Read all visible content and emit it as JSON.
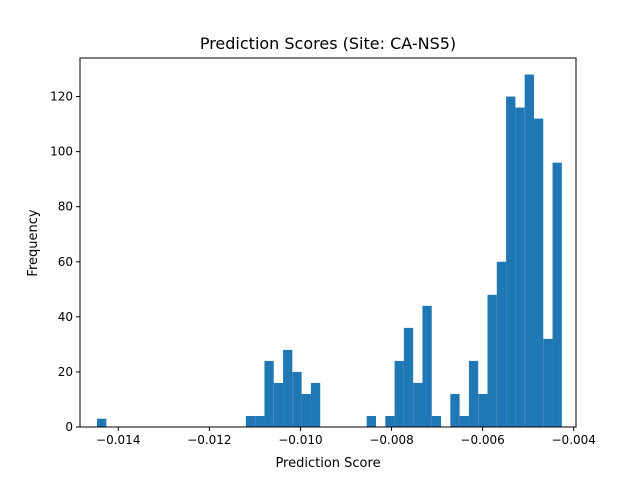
{
  "chart_data": {
    "type": "bar",
    "title": "Prediction Scores (Site: CA-NS5)",
    "xlabel": "Prediction Score",
    "ylabel": "Frequency",
    "xlim": [
      -0.01484,
      -0.00395
    ],
    "ylim": [
      0,
      134
    ],
    "xticks": [
      -0.014,
      -0.012,
      -0.01,
      -0.008,
      -0.006,
      -0.004
    ],
    "xtick_labels": [
      "−0.014",
      "−0.012",
      "−0.010",
      "−0.008",
      "−0.006",
      "−0.004"
    ],
    "yticks": [
      0,
      20,
      40,
      60,
      80,
      100,
      120
    ],
    "ytick_labels": [
      "0",
      "20",
      "40",
      "60",
      "80",
      "100",
      "120"
    ],
    "grid": false,
    "bar_color": "#1f77b4",
    "bin_width": 0.000204,
    "bins": [
      {
        "x0": -0.014466,
        "x1": -0.014262,
        "count": 3
      },
      {
        "x0": -0.011198,
        "x1": -0.010994,
        "count": 4
      },
      {
        "x0": -0.010994,
        "x1": -0.01079,
        "count": 4
      },
      {
        "x0": -0.01079,
        "x1": -0.010586,
        "count": 24
      },
      {
        "x0": -0.010586,
        "x1": -0.010382,
        "count": 16
      },
      {
        "x0": -0.010382,
        "x1": -0.010178,
        "count": 28
      },
      {
        "x0": -0.010178,
        "x1": -0.009974,
        "count": 20
      },
      {
        "x0": -0.009974,
        "x1": -0.00977,
        "count": 12
      },
      {
        "x0": -0.00977,
        "x1": -0.009566,
        "count": 16
      },
      {
        "x0": -0.008545,
        "x1": -0.008341,
        "count": 4
      },
      {
        "x0": -0.008137,
        "x1": -0.007933,
        "count": 4
      },
      {
        "x0": -0.007933,
        "x1": -0.007729,
        "count": 24
      },
      {
        "x0": -0.007729,
        "x1": -0.007525,
        "count": 36
      },
      {
        "x0": -0.007525,
        "x1": -0.007321,
        "count": 16
      },
      {
        "x0": -0.007321,
        "x1": -0.007117,
        "count": 44
      },
      {
        "x0": -0.007117,
        "x1": -0.006913,
        "count": 4
      },
      {
        "x0": -0.006709,
        "x1": -0.006505,
        "count": 12
      },
      {
        "x0": -0.006505,
        "x1": -0.006301,
        "count": 4
      },
      {
        "x0": -0.006301,
        "x1": -0.006097,
        "count": 24
      },
      {
        "x0": -0.006097,
        "x1": -0.005893,
        "count": 12
      },
      {
        "x0": -0.005893,
        "x1": -0.005689,
        "count": 48
      },
      {
        "x0": -0.005689,
        "x1": -0.005485,
        "count": 60
      },
      {
        "x0": -0.005485,
        "x1": -0.005281,
        "count": 120
      },
      {
        "x0": -0.005281,
        "x1": -0.005077,
        "count": 116
      },
      {
        "x0": -0.005077,
        "x1": -0.004873,
        "count": 128
      },
      {
        "x0": -0.004873,
        "x1": -0.004669,
        "count": 112
      },
      {
        "x0": -0.004669,
        "x1": -0.004465,
        "count": 32
      },
      {
        "x0": -0.004465,
        "x1": -0.004261,
        "count": 96
      }
    ]
  }
}
